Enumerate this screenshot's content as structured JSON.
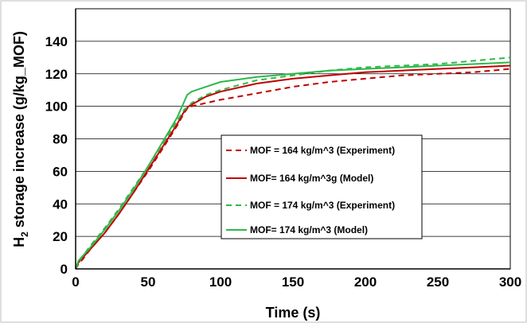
{
  "chart_data": {
    "type": "line",
    "xlabel": "Time (s)",
    "ylabel_main": "H",
    "ylabel_sub": "2",
    "ylabel_rest": " storage increase (g/kg_MOF)",
    "xlim": [
      0,
      300
    ],
    "ylim": [
      0,
      160
    ],
    "xticks": [
      0,
      50,
      100,
      150,
      200,
      250,
      300
    ],
    "yticks": [
      0,
      20,
      40,
      60,
      80,
      100,
      120,
      140
    ],
    "grid": "horizontal",
    "legend_position": "center-right",
    "series": [
      {
        "name": "MOF = 164 kg/m^3 (Experiment)",
        "color": "#c00000",
        "style": "dashed",
        "x": [
          0,
          2,
          5,
          10,
          20,
          30,
          40,
          50,
          60,
          70,
          75,
          78,
          80,
          90,
          100,
          125,
          150,
          175,
          200,
          225,
          250,
          275,
          300
        ],
        "y": [
          0,
          3,
          6,
          12,
          22,
          34,
          47,
          60,
          74,
          88,
          96,
          100,
          100,
          102,
          104,
          108,
          112,
          115,
          117,
          119,
          120,
          121,
          123
        ]
      },
      {
        "name": "MOF= 164 kg/m^3g (Model)",
        "color": "#c00000",
        "style": "solid",
        "x": [
          0,
          2,
          5,
          10,
          20,
          30,
          40,
          50,
          60,
          70,
          75,
          78,
          80,
          90,
          100,
          125,
          150,
          175,
          200,
          225,
          250,
          275,
          300
        ],
        "y": [
          0,
          4,
          7,
          12,
          22,
          34,
          47,
          61,
          75,
          89,
          97,
          100,
          101,
          106,
          109,
          114,
          117,
          119,
          121,
          122,
          123,
          124,
          125
        ]
      },
      {
        "name": "MOF = 174 kg/m^3 (Experiment)",
        "color": "#2db84a",
        "style": "dashed",
        "x": [
          0,
          2,
          5,
          10,
          20,
          30,
          40,
          50,
          60,
          70,
          75,
          78,
          80,
          90,
          100,
          125,
          150,
          175,
          200,
          225,
          250,
          275,
          300
        ],
        "y": [
          0,
          4,
          8,
          14,
          25,
          37,
          50,
          63,
          77,
          91,
          98,
          100,
          102,
          107,
          110,
          116,
          119,
          122,
          124,
          125,
          126,
          128,
          130
        ]
      },
      {
        "name": "MOF= 174 kg/m^3 (Model)",
        "color": "#2db84a",
        "style": "solid",
        "x": [
          0,
          2,
          5,
          10,
          20,
          30,
          40,
          50,
          60,
          70,
          75,
          77,
          80,
          90,
          100,
          125,
          150,
          175,
          200,
          225,
          250,
          275,
          300
        ],
        "y": [
          0,
          5,
          8,
          13,
          24,
          36,
          49,
          63,
          78,
          93,
          103,
          107,
          109,
          112,
          115,
          118,
          120,
          122,
          123,
          124,
          125,
          126,
          127
        ]
      }
    ]
  }
}
